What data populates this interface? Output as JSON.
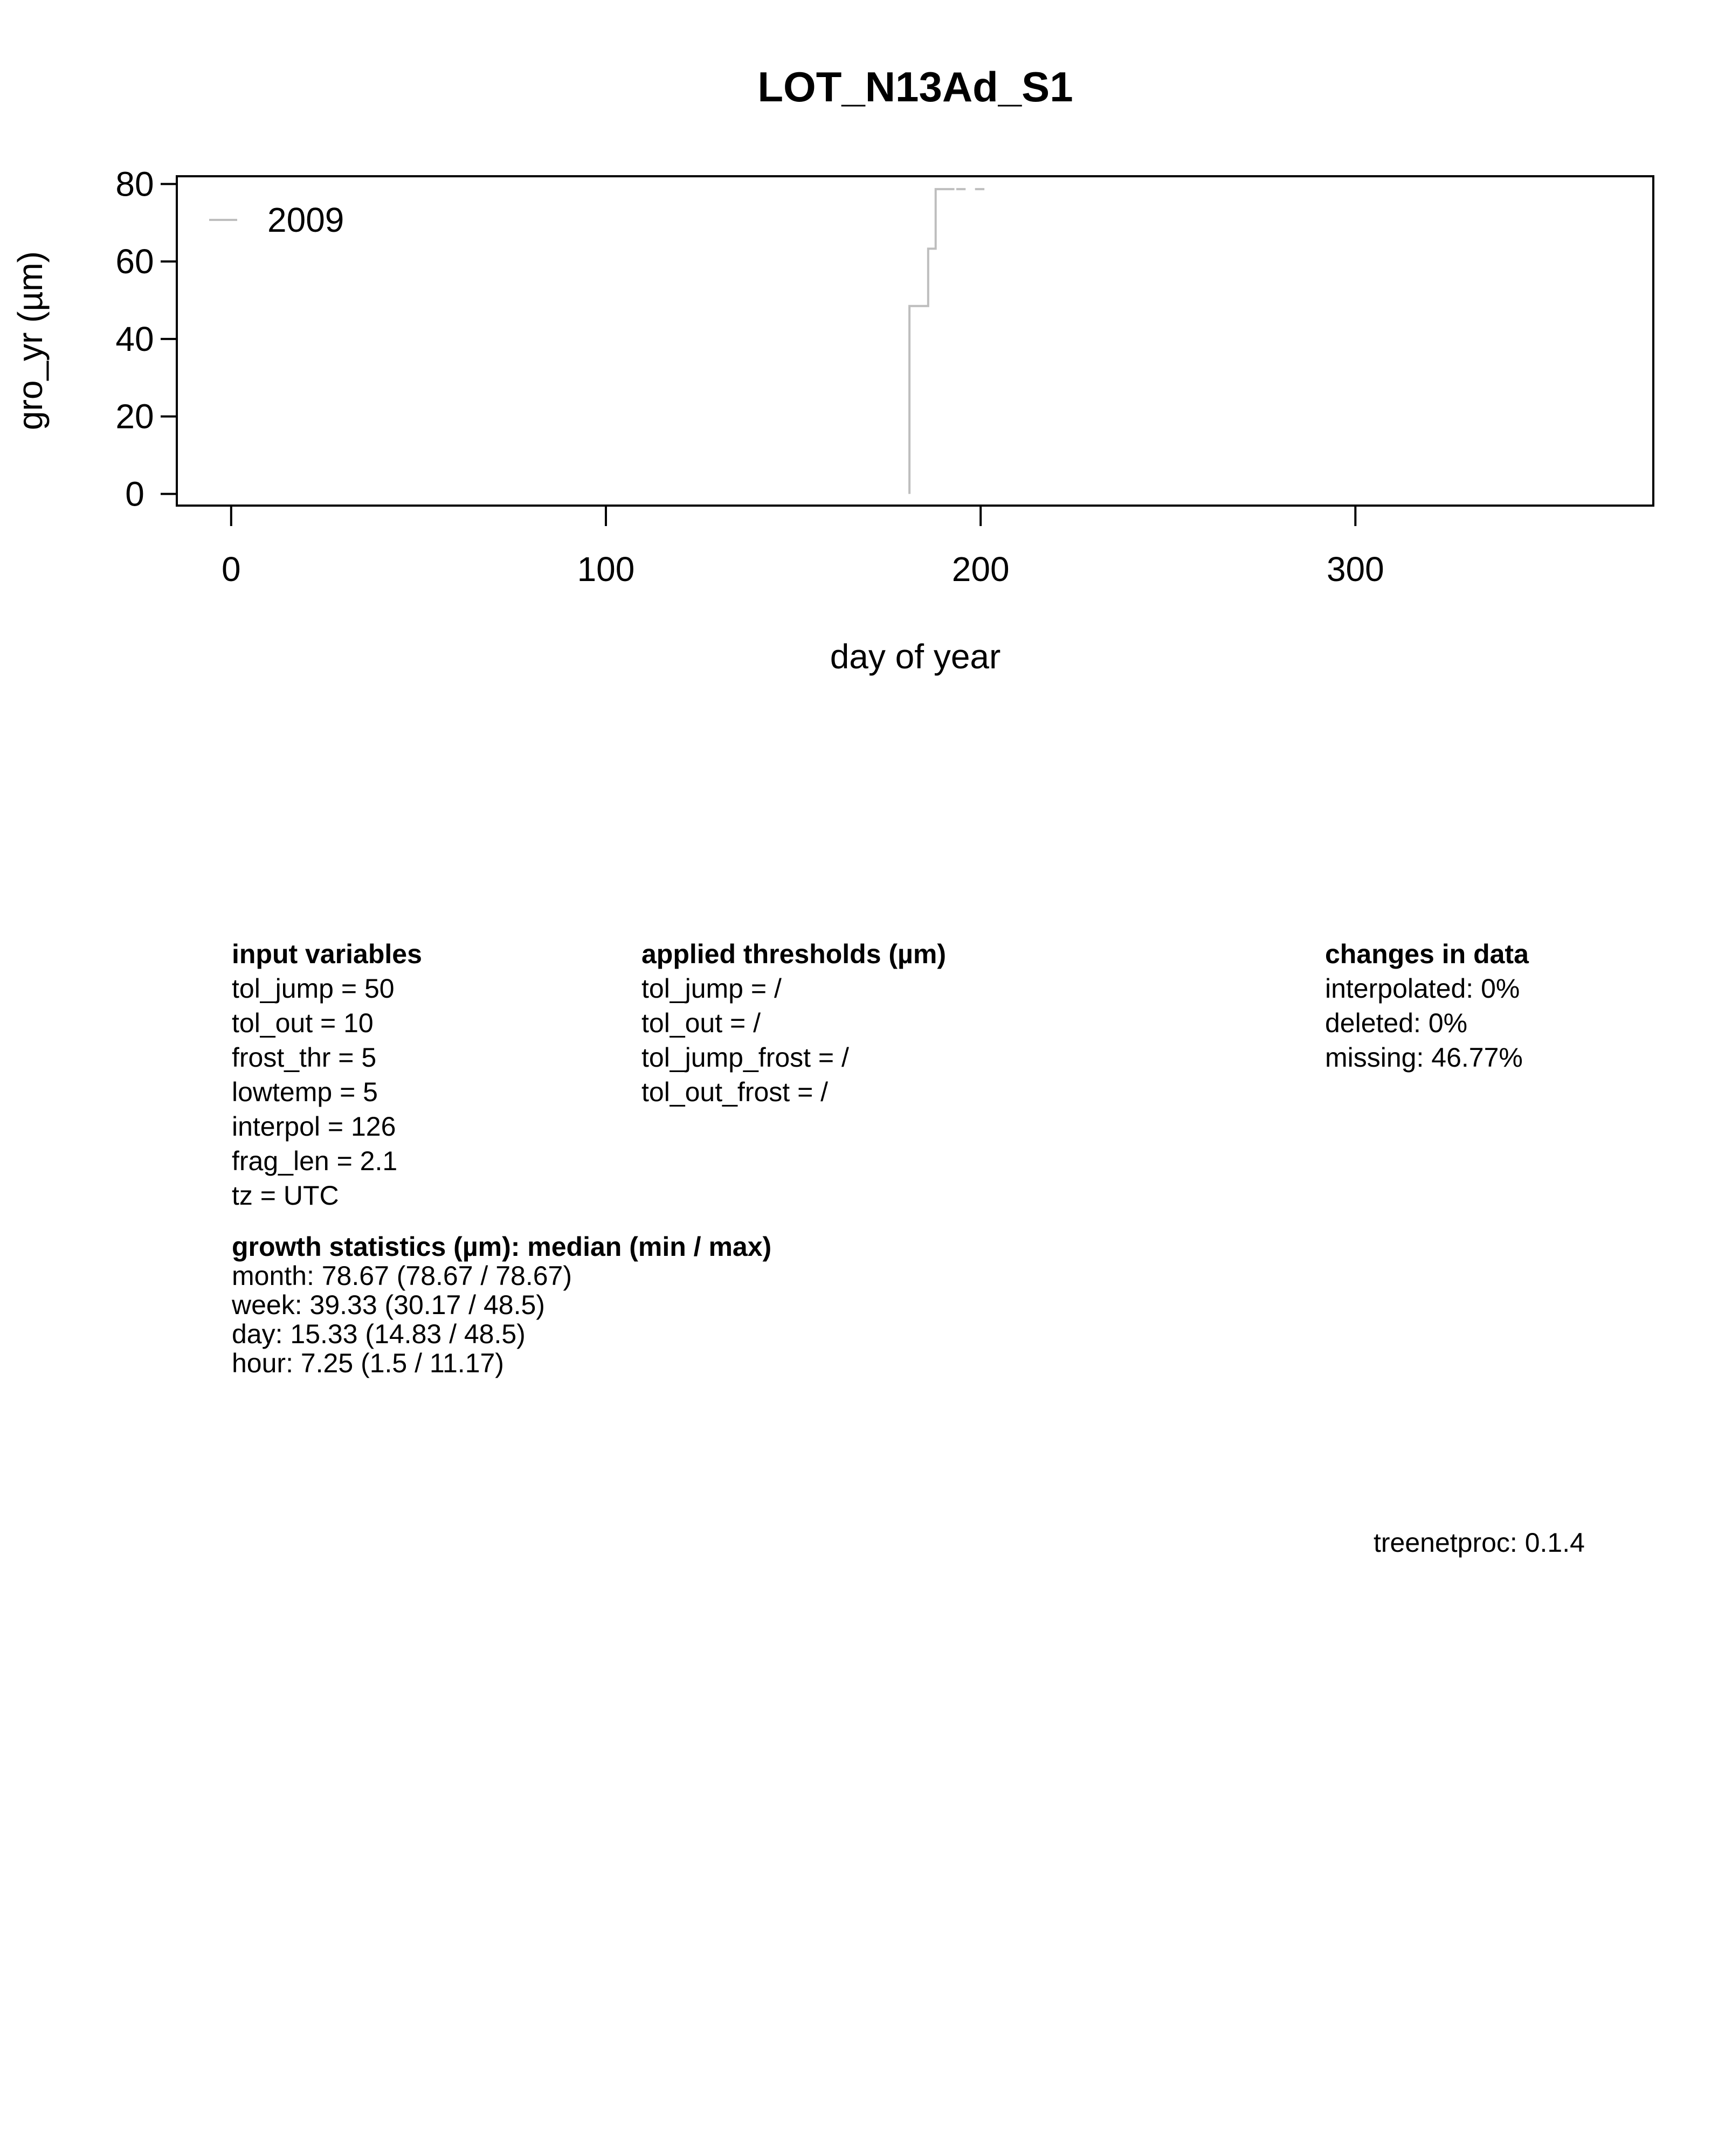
{
  "chart_data": {
    "type": "line",
    "title": "LOT_N13Ad_S1",
    "xlabel": "day of year",
    "ylabel": "gro_yr (µm)",
    "xlim": [
      -14.5,
      379.5
    ],
    "ylim": [
      -3,
      82
    ],
    "x_ticks": [
      0,
      100,
      200,
      300
    ],
    "y_ticks": [
      0,
      20,
      40,
      60,
      80
    ],
    "legend_placement": "top-left",
    "grid": false,
    "series": [
      {
        "name": "2009",
        "color": "#bebebe",
        "x": [
          181,
          181,
          186,
          186,
          188,
          188,
          193
        ],
        "y": [
          0,
          48.5,
          48.5,
          63.3,
          63.3,
          78.67,
          78.67
        ]
      },
      {
        "name": "2009",
        "color": "#bebebe",
        "x": [
          193.5,
          196
        ],
        "y": [
          78.67,
          78.67
        ]
      },
      {
        "name": "2009",
        "color": "#bebebe",
        "x": [
          198.5,
          201
        ],
        "y": [
          78.67,
          78.67
        ]
      }
    ]
  },
  "input_variables": {
    "heading": "input variables",
    "items": [
      "tol_jump = 50",
      "tol_out = 10",
      "frost_thr = 5",
      "lowtemp = 5",
      "interpol = 126",
      "frag_len = 2.1",
      "tz = UTC"
    ]
  },
  "applied_thresholds": {
    "heading": "applied thresholds (µm)",
    "items": [
      "tol_jump =  /",
      "tol_out =  /",
      "tol_jump_frost =  /",
      "tol_out_frost =  /"
    ]
  },
  "changes_in_data": {
    "heading": "changes in data",
    "items": [
      "interpolated: 0%",
      "deleted: 0%",
      "missing: 46.77%"
    ]
  },
  "growth_statistics": {
    "heading": "growth statistics (µm): median (min / max)",
    "items": [
      "month: 78.67 (78.67 / 78.67)",
      "week: 39.33 (30.17 / 48.5)",
      "day: 15.33 (14.83 / 48.5)",
      "hour: 7.25 (1.5 / 11.17)"
    ]
  },
  "version": "treenetproc: 0.1.4"
}
